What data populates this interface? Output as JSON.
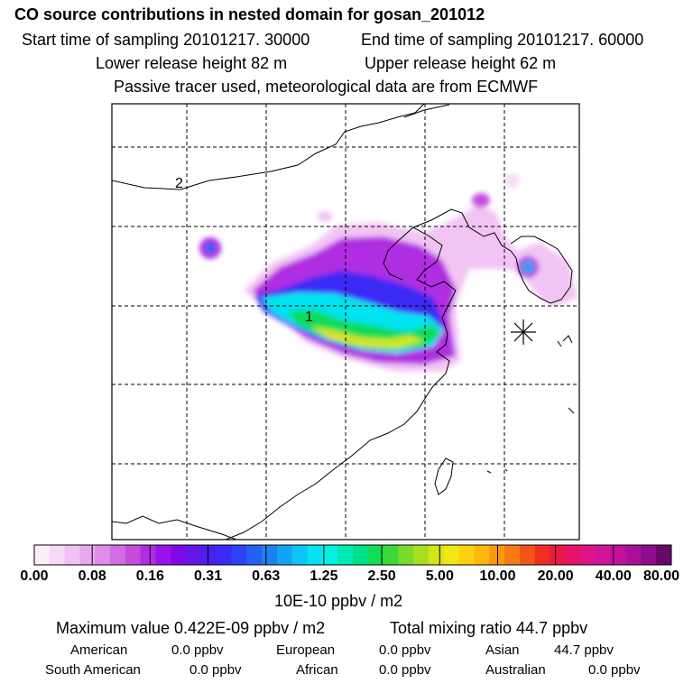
{
  "header": {
    "title": "CO  source contributions in nested domain for gosan_201012",
    "start_time": "Start time of sampling 20101217. 30000",
    "end_time": "End time of sampling 20101217. 60000",
    "lower_release": "Lower release height   82 m",
    "upper_release": "Upper release height   62 m",
    "tracer_note": "Passive tracer used, meteorological data are from ECMWF"
  },
  "chart_data": {
    "type": "heatmap",
    "description_labels": {
      "marker_1": "1",
      "marker_2": "2"
    },
    "colorbar": {
      "ticks": [
        "0.00",
        "0.08",
        "0.16",
        "0.31",
        "0.63",
        "1.25",
        "2.50",
        "5.00",
        "10.00",
        "20.00",
        "40.00",
        "80.00"
      ],
      "colors": [
        "#fbeefb",
        "#f6d9f6",
        "#f1c2f3",
        "#eaa9ef",
        "#e08ce9",
        "#d36de3",
        "#c44ddd",
        "#b02de1",
        "#9a12ea",
        "#7d0ae6",
        "#6216e8",
        "#4a1ff0",
        "#3a2af5",
        "#2e42f6",
        "#2460f2",
        "#1b82ef",
        "#12a4f0",
        "#0bc5f2",
        "#05e3f1",
        "#00f2e0",
        "#00e8b4",
        "#00e08a",
        "#10dc58",
        "#3ad83a",
        "#76dc2a",
        "#a8e020",
        "#d6e41a",
        "#f4e514",
        "#fcd20e",
        "#fcb80c",
        "#f99a0e",
        "#f57b12",
        "#f25418",
        "#ef2e22",
        "#ea1844",
        "#e4126a",
        "#dc1488",
        "#cf1498",
        "#c0129c",
        "#a8109a",
        "#8e0c8e",
        "#6a0868"
      ],
      "unit": "10E-10 ppbv / m2"
    }
  },
  "summary": {
    "max_value": "Maximum value  0.422E-09 ppbv / m2",
    "total_mixing": "Total mixing ratio        44.7 ppbv",
    "american_label": "American",
    "american_val": "0.0 ppbv",
    "european_label": "European",
    "european_val": "0.0 ppbv",
    "asian_label": "Asian",
    "asian_val": "44.7 ppbv",
    "south_american_label": "South American",
    "south_american_val": "0.0 ppbv",
    "african_label": "African",
    "african_val": "0.0 ppbv",
    "australian_label": "Australian",
    "australian_val": "0.0 ppbv"
  }
}
